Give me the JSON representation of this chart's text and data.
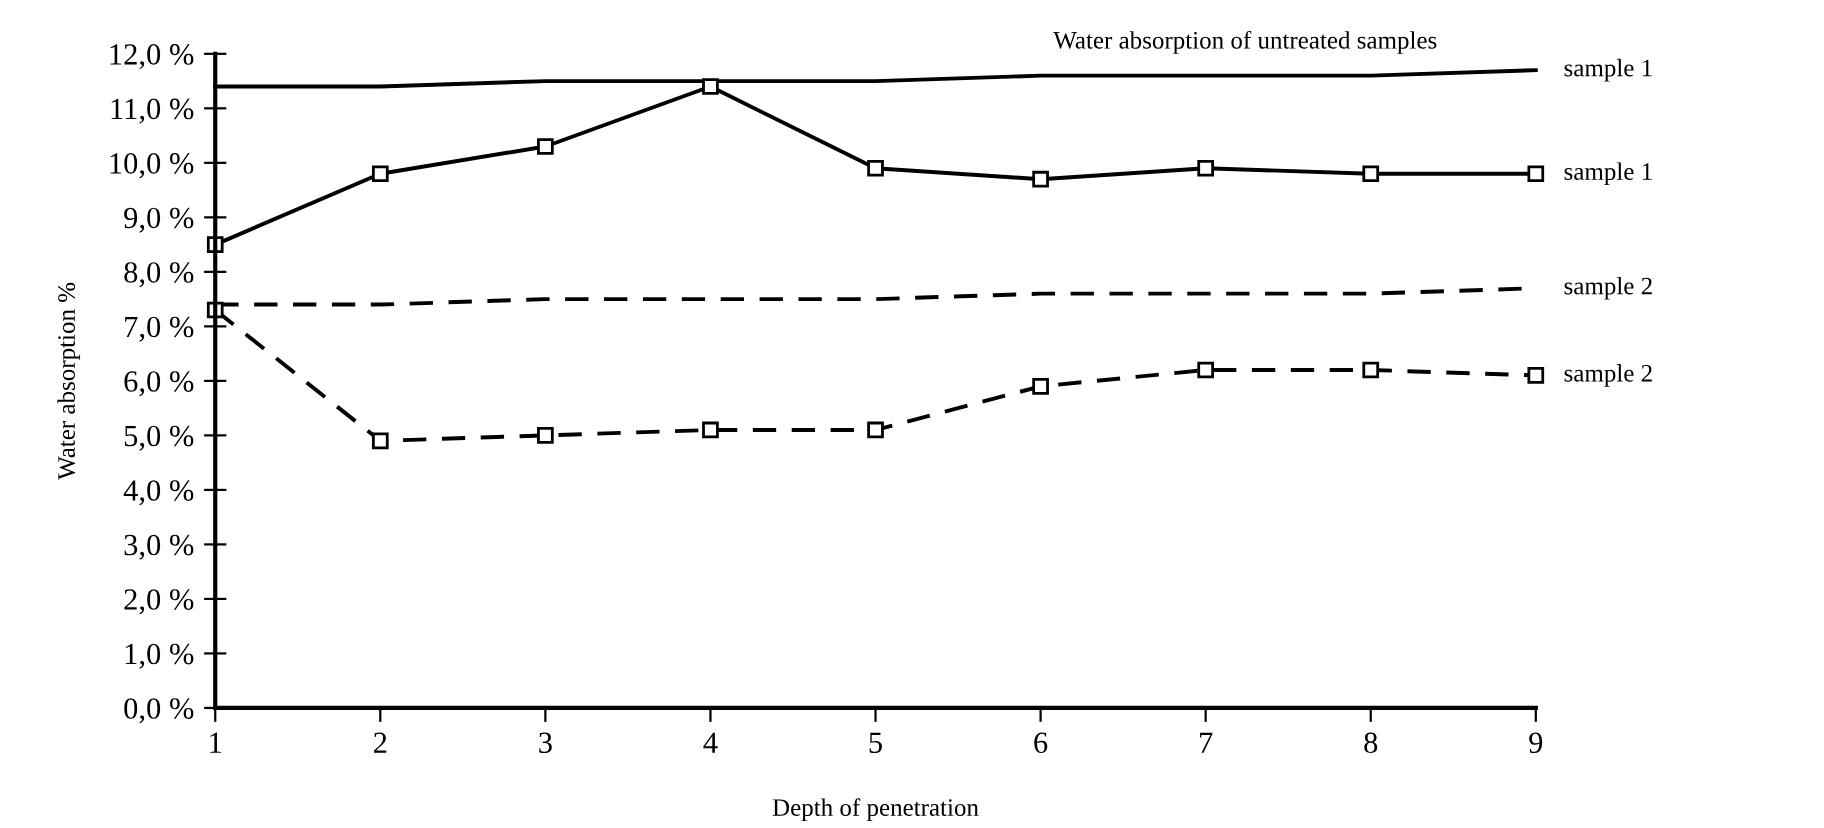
{
  "chart_data": {
    "type": "line",
    "xlabel": "Depth of penetration",
    "ylabel": "Water absorption %",
    "annotations": [
      "Water absorption of untreated samples"
    ],
    "x": [
      1,
      2,
      3,
      4,
      5,
      6,
      7,
      8,
      9
    ],
    "xlim": [
      1,
      9
    ],
    "xticks": [
      1,
      2,
      3,
      4,
      5,
      6,
      7,
      8,
      9
    ],
    "ylim": [
      0,
      12
    ],
    "yticks": [
      {
        "value": 0,
        "label": "0,0 %"
      },
      {
        "value": 1,
        "label": "1,0 %"
      },
      {
        "value": 2,
        "label": "2,0 %"
      },
      {
        "value": 3,
        "label": "3,0 %"
      },
      {
        "value": 4,
        "label": "4,0 %"
      },
      {
        "value": 5,
        "label": "5,0 %"
      },
      {
        "value": 6,
        "label": "6,0 %"
      },
      {
        "value": 7,
        "label": "7,0 %"
      },
      {
        "value": 8,
        "label": "8,0 %"
      },
      {
        "value": 9,
        "label": "9,0 %"
      },
      {
        "value": 10,
        "label": "10,0 %"
      },
      {
        "value": 11,
        "label": "11,0 %"
      },
      {
        "value": 12,
        "label": "12,0 %"
      }
    ],
    "grid": false,
    "legend": false,
    "series": [
      {
        "name": "sample 1",
        "color": "#000000",
        "values": [
          11.4,
          11.4,
          11.5,
          11.5,
          11.5,
          11.6,
          11.6,
          11.6,
          11.7
        ],
        "marker": "none",
        "line_style": "solid"
      },
      {
        "name": "sample 1",
        "color": "#000000",
        "values": [
          8.5,
          9.8,
          10.3,
          11.4,
          9.9,
          9.7,
          9.9,
          9.8,
          9.8
        ],
        "marker": "square",
        "line_style": "solid"
      },
      {
        "name": "sample 2",
        "color": "#000000",
        "values": [
          7.4,
          7.4,
          7.5,
          7.5,
          7.5,
          7.6,
          7.6,
          7.6,
          7.7
        ],
        "marker": "none",
        "line_style": "dashed"
      },
      {
        "name": "sample 2",
        "color": "#000000",
        "values": [
          7.3,
          4.9,
          5.0,
          5.1,
          5.1,
          5.9,
          6.2,
          6.2,
          6.1
        ],
        "marker": "square",
        "line_style": "dashed"
      }
    ]
  }
}
